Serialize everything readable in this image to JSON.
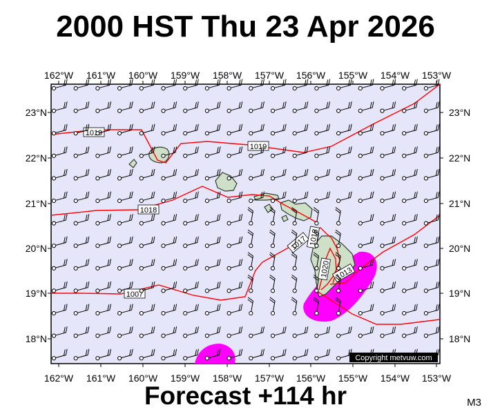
{
  "header": {
    "title": "2000 HST Thu 23 Apr 2026"
  },
  "footer": {
    "forecast": "Forecast +114 hr",
    "model": "M3"
  },
  "map": {
    "lon_labels": [
      "162°W",
      "161°W",
      "160°W",
      "159°W",
      "158°W",
      "157°W",
      "156°W",
      "155°W",
      "154°W",
      "153°W"
    ],
    "lat_labels": [
      "23°N",
      "22°N",
      "21°N",
      "20°N",
      "19°N",
      "18°N"
    ],
    "lon_range": [
      -162,
      -153
    ],
    "lat_range": [
      17.45,
      23.55
    ],
    "isobar_labels": [
      "1019",
      "1019",
      "1018",
      "1017",
      "1018",
      "1020",
      "1013",
      "1007"
    ],
    "copyright": "Copyright metvuw.com",
    "colors": {
      "background": "#e6e6fa",
      "isobar": "#ff0000",
      "precip": "#ff00ff",
      "land": "#cfe0c8"
    }
  }
}
